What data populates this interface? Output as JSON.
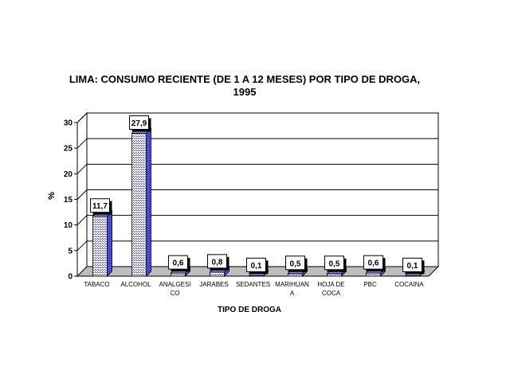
{
  "chart_data": {
    "type": "bar",
    "title_line1": "LIMA: CONSUMO RECIENTE (DE 1 A 12 MESES) POR TIPO DE DROGA,",
    "title_line2": "1995",
    "xlabel": "TIPO DE DROGA",
    "ylabel": "%",
    "ylim": [
      0,
      30
    ],
    "yticks": [
      0,
      5,
      10,
      15,
      20,
      25,
      30
    ],
    "grid": true,
    "legend": "none",
    "categories": [
      [
        "TABACO"
      ],
      [
        "ALCOHOL"
      ],
      [
        "ANALGESI",
        "CO"
      ],
      [
        "JARABES"
      ],
      [
        "SEDANTES"
      ],
      [
        "MARIHUAN",
        "A"
      ],
      [
        "HOJA DE",
        "COCA"
      ],
      [
        "PBC"
      ],
      [
        "COCAINA"
      ]
    ],
    "values": [
      11.7,
      27.9,
      0.6,
      0.8,
      0.1,
      0.5,
      0.5,
      0.6,
      0.1
    ],
    "data_labels": [
      "11,7",
      "27,9",
      "0,6",
      "0,8",
      "0,1",
      "0,5",
      "0,5",
      "0,6",
      "0,1"
    ],
    "colors": {
      "bar_front": "#3b3bd6",
      "bar_side": "#2a2aa0",
      "floor": "#bdbdbd",
      "wall": "#ffffff",
      "grid": "#000000"
    }
  }
}
